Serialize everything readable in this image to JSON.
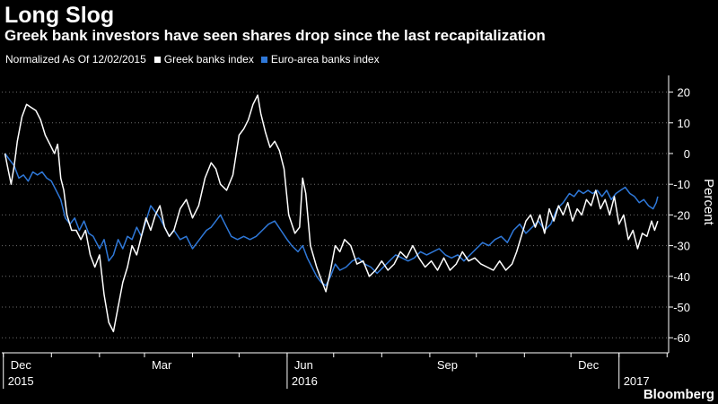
{
  "title": "Long Slog",
  "subtitle": "Greek bank investors have seen shares drop since the last recapitalization",
  "note": "Normalized As Of 12/02/2015",
  "brand": "Bloomberg",
  "colors": {
    "background": "#000000",
    "greek": "#ffffff",
    "euro": "#2f78d8",
    "grid": "#6e6e6e"
  },
  "chart_data": {
    "type": "line",
    "title": "Long Slog",
    "subtitle": "Greek bank investors have seen shares drop since the last recapitalization",
    "ylabel": "Percent",
    "ylim": [
      -63,
      23
    ],
    "yticks": [
      20,
      10,
      0,
      -10,
      -20,
      -30,
      -40,
      -50,
      -60
    ],
    "y_axis_position": "right",
    "grid": "horizontal dotted",
    "legend": "top-left",
    "x_tick_labels": [
      {
        "month": "Dec",
        "year": "2015",
        "date": "2015-12-01"
      },
      {
        "month": "Mar",
        "year": "",
        "date": "2016-03-01"
      },
      {
        "month": "Jun",
        "year": "2016",
        "date": "2016-06-01"
      },
      {
        "month": "Sep",
        "year": "",
        "date": "2016-09-01"
      },
      {
        "month": "Dec",
        "year": "",
        "date": "2016-12-01"
      },
      {
        "month": "",
        "year": "2017",
        "date": "2017-01-01"
      }
    ],
    "series": [
      {
        "name": "Greek banks index",
        "color": "#ffffff",
        "points": [
          [
            "2015-12-02",
            0
          ],
          [
            "2015-12-04",
            -5
          ],
          [
            "2015-12-06",
            -10
          ],
          [
            "2015-12-08",
            -4
          ],
          [
            "2015-12-10",
            4
          ],
          [
            "2015-12-13",
            12
          ],
          [
            "2015-12-16",
            16
          ],
          [
            "2015-12-19",
            15
          ],
          [
            "2015-12-22",
            14
          ],
          [
            "2015-12-25",
            11
          ],
          [
            "2015-12-28",
            6
          ],
          [
            "2015-12-31",
            3
          ],
          [
            "2016-01-03",
            0
          ],
          [
            "2016-01-05",
            3
          ],
          [
            "2016-01-07",
            -8
          ],
          [
            "2016-01-09",
            -12
          ],
          [
            "2016-01-11",
            -20
          ],
          [
            "2016-01-14",
            -25
          ],
          [
            "2016-01-17",
            -25
          ],
          [
            "2016-01-20",
            -28
          ],
          [
            "2016-01-23",
            -25
          ],
          [
            "2016-01-26",
            -33
          ],
          [
            "2016-01-29",
            -37
          ],
          [
            "2016-02-01",
            -33
          ],
          [
            "2016-02-04",
            -46
          ],
          [
            "2016-02-07",
            -55
          ],
          [
            "2016-02-10",
            -58
          ],
          [
            "2016-02-13",
            -50
          ],
          [
            "2016-02-16",
            -42
          ],
          [
            "2016-02-19",
            -37
          ],
          [
            "2016-02-22",
            -30
          ],
          [
            "2016-02-25",
            -33
          ],
          [
            "2016-02-28",
            -27
          ],
          [
            "2016-03-02",
            -21
          ],
          [
            "2016-03-05",
            -25
          ],
          [
            "2016-03-08",
            -20
          ],
          [
            "2016-03-11",
            -17
          ],
          [
            "2016-03-14",
            -24
          ],
          [
            "2016-03-17",
            -27
          ],
          [
            "2016-03-20",
            -25
          ],
          [
            "2016-03-24",
            -18
          ],
          [
            "2016-03-28",
            -15
          ],
          [
            "2016-04-01",
            -21
          ],
          [
            "2016-04-05",
            -17
          ],
          [
            "2016-04-09",
            -8
          ],
          [
            "2016-04-13",
            -3
          ],
          [
            "2016-04-16",
            -5
          ],
          [
            "2016-04-19",
            -10
          ],
          [
            "2016-04-23",
            -12
          ],
          [
            "2016-04-27",
            -7
          ],
          [
            "2016-05-01",
            6
          ],
          [
            "2016-05-04",
            8
          ],
          [
            "2016-05-07",
            11
          ],
          [
            "2016-05-10",
            16
          ],
          [
            "2016-05-13",
            19
          ],
          [
            "2016-05-15",
            13
          ],
          [
            "2016-05-18",
            7
          ],
          [
            "2016-05-21",
            2
          ],
          [
            "2016-05-24",
            4
          ],
          [
            "2016-05-27",
            1
          ],
          [
            "2016-05-30",
            -5
          ],
          [
            "2016-06-02",
            -20
          ],
          [
            "2016-06-06",
            -26
          ],
          [
            "2016-06-09",
            -24
          ],
          [
            "2016-06-11",
            -8
          ],
          [
            "2016-06-13",
            -13
          ],
          [
            "2016-06-16",
            -30
          ],
          [
            "2016-06-20",
            -37
          ],
          [
            "2016-06-23",
            -41
          ],
          [
            "2016-06-26",
            -45
          ],
          [
            "2016-06-29",
            -38
          ],
          [
            "2016-07-02",
            -30
          ],
          [
            "2016-07-05",
            -32
          ],
          [
            "2016-07-08",
            -28
          ],
          [
            "2016-07-12",
            -30
          ],
          [
            "2016-07-16",
            -36
          ],
          [
            "2016-07-20",
            -35
          ],
          [
            "2016-07-24",
            -40
          ],
          [
            "2016-07-28",
            -38
          ],
          [
            "2016-08-01",
            -35
          ],
          [
            "2016-08-05",
            -38
          ],
          [
            "2016-08-09",
            -36
          ],
          [
            "2016-08-13",
            -32
          ],
          [
            "2016-08-17",
            -34
          ],
          [
            "2016-08-21",
            -30
          ],
          [
            "2016-08-25",
            -34
          ],
          [
            "2016-08-29",
            -37
          ],
          [
            "2016-09-02",
            -35
          ],
          [
            "2016-09-06",
            -38
          ],
          [
            "2016-09-10",
            -34
          ],
          [
            "2016-09-14",
            -38
          ],
          [
            "2016-09-18",
            -36
          ],
          [
            "2016-09-22",
            -32
          ],
          [
            "2016-09-26",
            -35
          ],
          [
            "2016-09-30",
            -34
          ],
          [
            "2016-10-04",
            -36
          ],
          [
            "2016-10-08",
            -37
          ],
          [
            "2016-10-12",
            -38
          ],
          [
            "2016-10-16",
            -35
          ],
          [
            "2016-10-20",
            -38
          ],
          [
            "2016-10-24",
            -36
          ],
          [
            "2016-10-27",
            -32
          ],
          [
            "2016-10-30",
            -27
          ],
          [
            "2016-11-02",
            -22
          ],
          [
            "2016-11-05",
            -20
          ],
          [
            "2016-11-08",
            -24
          ],
          [
            "2016-11-11",
            -20
          ],
          [
            "2016-11-14",
            -26
          ],
          [
            "2016-11-17",
            -18
          ],
          [
            "2016-11-20",
            -22
          ],
          [
            "2016-11-23",
            -17
          ],
          [
            "2016-11-26",
            -20
          ],
          [
            "2016-11-29",
            -16
          ],
          [
            "2016-12-02",
            -22
          ],
          [
            "2016-12-05",
            -18
          ],
          [
            "2016-12-08",
            -20
          ],
          [
            "2016-12-11",
            -15
          ],
          [
            "2016-12-14",
            -17
          ],
          [
            "2016-12-17",
            -12
          ],
          [
            "2016-12-20",
            -18
          ],
          [
            "2016-12-23",
            -15
          ],
          [
            "2016-12-26",
            -20
          ],
          [
            "2016-12-29",
            -14
          ],
          [
            "2017-01-01",
            -23
          ],
          [
            "2017-01-04",
            -20
          ],
          [
            "2017-01-07",
            -28
          ],
          [
            "2017-01-10",
            -25
          ],
          [
            "2017-01-13",
            -31
          ],
          [
            "2017-01-16",
            -26
          ],
          [
            "2017-01-19",
            -27
          ],
          [
            "2017-01-22",
            -22
          ],
          [
            "2017-01-24",
            -25
          ],
          [
            "2017-01-26",
            -22
          ]
        ]
      },
      {
        "name": "Euro-area banks index",
        "color": "#2f78d8",
        "points": [
          [
            "2015-12-02",
            0
          ],
          [
            "2015-12-05",
            -2
          ],
          [
            "2015-12-08",
            -4
          ],
          [
            "2015-12-11",
            -8
          ],
          [
            "2015-12-14",
            -7
          ],
          [
            "2015-12-17",
            -9
          ],
          [
            "2015-12-20",
            -6
          ],
          [
            "2015-12-23",
            -7
          ],
          [
            "2015-12-26",
            -6
          ],
          [
            "2015-12-29",
            -8
          ],
          [
            "2016-01-01",
            -9
          ],
          [
            "2016-01-04",
            -12
          ],
          [
            "2016-01-07",
            -15
          ],
          [
            "2016-01-10",
            -21
          ],
          [
            "2016-01-13",
            -23
          ],
          [
            "2016-01-16",
            -21
          ],
          [
            "2016-01-19",
            -25
          ],
          [
            "2016-01-22",
            -22
          ],
          [
            "2016-01-25",
            -26
          ],
          [
            "2016-01-28",
            -27
          ],
          [
            "2016-02-01",
            -31
          ],
          [
            "2016-02-04",
            -28
          ],
          [
            "2016-02-07",
            -35
          ],
          [
            "2016-02-10",
            -33
          ],
          [
            "2016-02-13",
            -28
          ],
          [
            "2016-02-16",
            -31
          ],
          [
            "2016-02-19",
            -27
          ],
          [
            "2016-02-22",
            -28
          ],
          [
            "2016-02-25",
            -24
          ],
          [
            "2016-02-28",
            -27
          ],
          [
            "2016-03-02",
            -22
          ],
          [
            "2016-03-05",
            -17
          ],
          [
            "2016-03-08",
            -19
          ],
          [
            "2016-03-11",
            -21
          ],
          [
            "2016-03-14",
            -24
          ],
          [
            "2016-03-17",
            -27
          ],
          [
            "2016-03-20",
            -25
          ],
          [
            "2016-03-24",
            -28
          ],
          [
            "2016-03-28",
            -27
          ],
          [
            "2016-04-01",
            -31
          ],
          [
            "2016-04-04",
            -29
          ],
          [
            "2016-04-07",
            -27
          ],
          [
            "2016-04-10",
            -25
          ],
          [
            "2016-04-13",
            -24
          ],
          [
            "2016-04-16",
            -22
          ],
          [
            "2016-04-19",
            -20
          ],
          [
            "2016-04-22",
            -23
          ],
          [
            "2016-04-26",
            -27
          ],
          [
            "2016-04-30",
            -28
          ],
          [
            "2016-05-04",
            -27
          ],
          [
            "2016-05-08",
            -28
          ],
          [
            "2016-05-12",
            -27
          ],
          [
            "2016-05-16",
            -25
          ],
          [
            "2016-05-20",
            -23
          ],
          [
            "2016-05-24",
            -22
          ],
          [
            "2016-05-28",
            -25
          ],
          [
            "2016-06-01",
            -28
          ],
          [
            "2016-06-04",
            -30
          ],
          [
            "2016-06-08",
            -32
          ],
          [
            "2016-06-11",
            -30
          ],
          [
            "2016-06-14",
            -34
          ],
          [
            "2016-06-17",
            -37
          ],
          [
            "2016-06-20",
            -40
          ],
          [
            "2016-06-23",
            -42
          ],
          [
            "2016-06-26",
            -43
          ],
          [
            "2016-06-29",
            -40
          ],
          [
            "2016-07-02",
            -36
          ],
          [
            "2016-07-05",
            -38
          ],
          [
            "2016-07-09",
            -37
          ],
          [
            "2016-07-13",
            -35
          ],
          [
            "2016-07-17",
            -34
          ],
          [
            "2016-07-21",
            -36
          ],
          [
            "2016-07-25",
            -37
          ],
          [
            "2016-07-29",
            -39
          ],
          [
            "2016-08-02",
            -37
          ],
          [
            "2016-08-06",
            -35
          ],
          [
            "2016-08-10",
            -33
          ],
          [
            "2016-08-14",
            -34
          ],
          [
            "2016-08-18",
            -35
          ],
          [
            "2016-08-22",
            -34
          ],
          [
            "2016-08-26",
            -32
          ],
          [
            "2016-08-30",
            -33
          ],
          [
            "2016-09-03",
            -32
          ],
          [
            "2016-09-07",
            -31
          ],
          [
            "2016-09-11",
            -33
          ],
          [
            "2016-09-15",
            -34
          ],
          [
            "2016-09-19",
            -33
          ],
          [
            "2016-09-23",
            -35
          ],
          [
            "2016-09-27",
            -33
          ],
          [
            "2016-10-01",
            -31
          ],
          [
            "2016-10-05",
            -29
          ],
          [
            "2016-10-09",
            -30
          ],
          [
            "2016-10-13",
            -28
          ],
          [
            "2016-10-17",
            -27
          ],
          [
            "2016-10-21",
            -29
          ],
          [
            "2016-10-25",
            -25
          ],
          [
            "2016-10-29",
            -23
          ],
          [
            "2016-11-02",
            -26
          ],
          [
            "2016-11-06",
            -24
          ],
          [
            "2016-11-10",
            -22
          ],
          [
            "2016-11-14",
            -25
          ],
          [
            "2016-11-18",
            -23
          ],
          [
            "2016-11-22",
            -18
          ],
          [
            "2016-11-26",
            -16
          ],
          [
            "2016-11-30",
            -13
          ],
          [
            "2016-12-03",
            -14
          ],
          [
            "2016-12-06",
            -12
          ],
          [
            "2016-12-09",
            -13
          ],
          [
            "2016-12-12",
            -12
          ],
          [
            "2016-12-15",
            -13
          ],
          [
            "2016-12-18",
            -12
          ],
          [
            "2016-12-21",
            -14
          ],
          [
            "2016-12-24",
            -12
          ],
          [
            "2016-12-27",
            -15
          ],
          [
            "2016-12-30",
            -13
          ],
          [
            "2017-01-02",
            -12
          ],
          [
            "2017-01-05",
            -11
          ],
          [
            "2017-01-08",
            -13
          ],
          [
            "2017-01-11",
            -14
          ],
          [
            "2017-01-14",
            -16
          ],
          [
            "2017-01-17",
            -15
          ],
          [
            "2017-01-20",
            -17
          ],
          [
            "2017-01-23",
            -18
          ],
          [
            "2017-01-25",
            -16
          ],
          [
            "2017-01-26",
            -14
          ]
        ]
      }
    ]
  }
}
